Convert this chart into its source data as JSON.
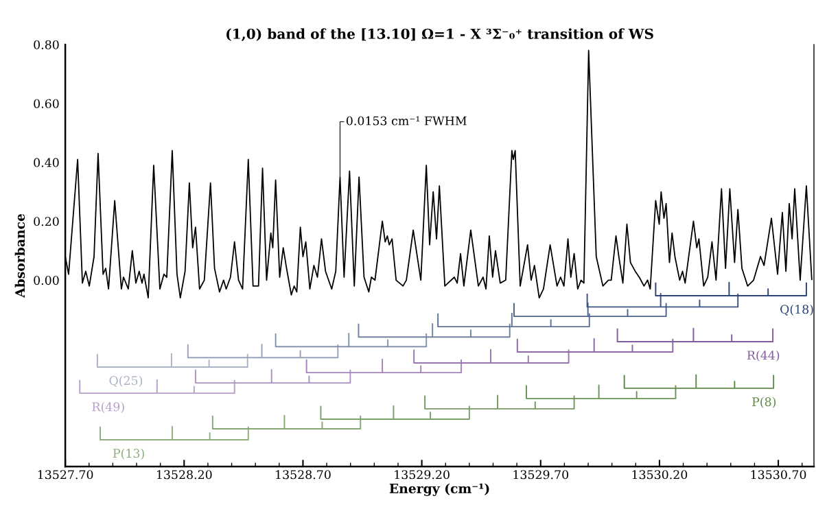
{
  "chart_data": {
    "type": "line",
    "title": "(1,0) band of the [13.10] Ω=1 - X ³Σ⁻₀⁺ transition of WS",
    "xlabel": "Energy (cm⁻¹)",
    "ylabel": "Absorbance",
    "xlim": [
      13527.7,
      13530.85
    ],
    "ylim": [
      -0.633,
      0.8
    ],
    "xticks": [
      {
        "value": 13527.7,
        "label": "13527.70"
      },
      {
        "value": 13527.8,
        "label": null
      },
      {
        "value": 13527.9,
        "label": null
      },
      {
        "value": 13528.0,
        "label": null
      },
      {
        "value": 13528.1,
        "label": null
      },
      {
        "value": 13528.2,
        "label": "13528.20"
      },
      {
        "value": 13528.3,
        "label": null
      },
      {
        "value": 13528.4,
        "label": null
      },
      {
        "value": 13528.5,
        "label": null
      },
      {
        "value": 13528.6,
        "label": null
      },
      {
        "value": 13528.7,
        "label": "13528.70"
      },
      {
        "value": 13528.8,
        "label": null
      },
      {
        "value": 13528.9,
        "label": null
      },
      {
        "value": 13529.0,
        "label": null
      },
      {
        "value": 13529.1,
        "label": null
      },
      {
        "value": 13529.2,
        "label": "13529.20"
      },
      {
        "value": 13529.3,
        "label": null
      },
      {
        "value": 13529.4,
        "label": null
      },
      {
        "value": 13529.5,
        "label": null
      },
      {
        "value": 13529.6,
        "label": null
      },
      {
        "value": 13529.7,
        "label": "13529.70"
      },
      {
        "value": 13529.8,
        "label": null
      },
      {
        "value": 13529.9,
        "label": null
      },
      {
        "value": 13530.0,
        "label": null
      },
      {
        "value": 13530.1,
        "label": null
      },
      {
        "value": 13530.2,
        "label": "13530.20"
      },
      {
        "value": 13530.3,
        "label": null
      },
      {
        "value": 13530.4,
        "label": null
      },
      {
        "value": 13530.5,
        "label": null
      },
      {
        "value": 13530.6,
        "label": null
      },
      {
        "value": 13530.7,
        "label": "13530.70"
      },
      {
        "value": 13530.8,
        "label": null
      }
    ],
    "yticks": [
      {
        "value": 0,
        "label": "0.00"
      },
      {
        "value": 0.2,
        "label": "0.20"
      },
      {
        "value": 0.4,
        "label": "0.40"
      },
      {
        "value": 0.6,
        "label": "0.60"
      },
      {
        "value": 0.8,
        "label": "0.80"
      }
    ],
    "grid": false,
    "legend": false,
    "marker": "none",
    "line_style": "solid",
    "annotations": [
      {
        "text": "0.0153 cm⁻¹ FWHM",
        "x": 13528.856,
        "y": 0.35
      }
    ],
    "series": [
      {
        "color": "#000000",
        "x": [
          13527.7,
          13527.714,
          13527.752,
          13527.772,
          13527.786,
          13527.801,
          13527.821,
          13527.838,
          13527.859,
          13527.87,
          13527.882,
          13527.908,
          13527.936,
          13527.945,
          13527.965,
          13527.982,
          13527.997,
          13528.011,
          13528.023,
          13528.031,
          13528.049,
          13528.072,
          13528.098,
          13528.115,
          13528.127,
          13528.15,
          13528.17,
          13528.184,
          13528.204,
          13528.222,
          13528.236,
          13528.248,
          13528.265,
          13528.285,
          13528.311,
          13528.328,
          13528.349,
          13528.366,
          13528.377,
          13528.395,
          13528.412,
          13528.429,
          13528.446,
          13528.47,
          13528.49,
          13528.513,
          13528.53,
          13528.547,
          13528.565,
          13528.573,
          13528.585,
          13528.602,
          13528.617,
          13528.631,
          13528.651,
          13528.663,
          13528.674,
          13528.689,
          13528.7,
          13528.712,
          13528.729,
          13528.746,
          13528.761,
          13528.778,
          13528.795,
          13528.821,
          13528.838,
          13528.856,
          13528.873,
          13528.896,
          13528.916,
          13528.936,
          13528.957,
          13528.977,
          13528.988,
          13529.003,
          13529.034,
          13529.046,
          13529.055,
          13529.063,
          13529.075,
          13529.092,
          13529.121,
          13529.135,
          13529.164,
          13529.196,
          13529.219,
          13529.233,
          13529.248,
          13529.262,
          13529.274,
          13529.297,
          13529.337,
          13529.349,
          13529.363,
          13529.377,
          13529.406,
          13529.438,
          13529.458,
          13529.47,
          13529.484,
          13529.498,
          13529.51,
          13529.53,
          13529.553,
          13529.579,
          13529.585,
          13529.593,
          13529.614,
          13529.645,
          13529.66,
          13529.674,
          13529.694,
          13529.712,
          13529.74,
          13529.769,
          13529.784,
          13529.798,
          13529.815,
          13529.827,
          13529.841,
          13529.856,
          13529.87,
          13529.882,
          13529.902,
          13529.934,
          13529.962,
          13529.985,
          13529.997,
          13530.017,
          13530.029,
          13530.046,
          13530.063,
          13530.078,
          13530.098,
          13530.115,
          13530.135,
          13530.15,
          13530.161,
          13530.184,
          13530.199,
          13530.207,
          13530.219,
          13530.228,
          13530.242,
          13530.253,
          13530.265,
          13530.285,
          13530.297,
          13530.308,
          13530.343,
          13530.357,
          13530.366,
          13530.386,
          13530.403,
          13530.421,
          13530.438,
          13530.461,
          13530.478,
          13530.496,
          13530.516,
          13530.53,
          13530.547,
          13530.571,
          13530.596,
          13530.625,
          13530.64,
          13530.671,
          13530.697,
          13530.717,
          13530.732,
          13530.746,
          13530.758,
          13530.769,
          13530.792,
          13530.818,
          13530.841
        ],
        "values": [
          0.08,
          0.02,
          0.41,
          -0.01,
          0.03,
          -0.02,
          0.08,
          0.43,
          0.02,
          0.04,
          -0.03,
          0.27,
          -0.03,
          0.01,
          -0.03,
          0.1,
          -0.01,
          0.03,
          -0.01,
          0.02,
          -0.06,
          0.39,
          -0.03,
          0.02,
          0.01,
          0.44,
          0.02,
          -0.06,
          0.03,
          0.33,
          0.11,
          0.18,
          -0.03,
          0.0,
          0.33,
          0.04,
          -0.04,
          0.0,
          -0.03,
          0.01,
          0.13,
          0.0,
          -0.03,
          0.41,
          -0.02,
          -0.02,
          0.38,
          0.0,
          0.16,
          0.11,
          0.34,
          0.01,
          0.11,
          0.04,
          -0.05,
          -0.02,
          -0.04,
          0.18,
          0.08,
          0.13,
          -0.03,
          0.05,
          0.01,
          0.14,
          0.03,
          -0.03,
          0.03,
          0.35,
          0.01,
          0.37,
          -0.02,
          0.35,
          0.01,
          -0.04,
          0.01,
          0.0,
          0.2,
          0.13,
          0.15,
          0.12,
          0.14,
          0.0,
          -0.02,
          0.0,
          0.17,
          0.0,
          0.39,
          0.12,
          0.3,
          0.14,
          0.32,
          -0.02,
          0.01,
          -0.01,
          0.09,
          -0.02,
          0.17,
          -0.02,
          0.01,
          -0.03,
          0.15,
          0.01,
          0.1,
          -0.01,
          0.0,
          0.44,
          0.41,
          0.44,
          -0.02,
          0.12,
          0.0,
          0.05,
          -0.06,
          -0.03,
          0.12,
          -0.02,
          0.01,
          -0.02,
          0.14,
          0.01,
          0.09,
          -0.03,
          0.0,
          -0.01,
          0.78,
          0.08,
          -0.02,
          0.0,
          0.0,
          0.15,
          0.08,
          -0.01,
          0.19,
          0.06,
          0.03,
          0.01,
          -0.02,
          0.0,
          -0.03,
          0.27,
          0.19,
          0.3,
          0.21,
          0.26,
          0.06,
          0.16,
          0.08,
          0.0,
          0.03,
          -0.01,
          0.2,
          0.11,
          0.14,
          -0.02,
          0.01,
          0.13,
          0.0,
          0.31,
          0.04,
          0.31,
          0.06,
          0.24,
          0.04,
          -0.02,
          0.0,
          0.08,
          0.05,
          0.21,
          0.02,
          0.23,
          0.03,
          0.26,
          0.14,
          0.31,
          0.0,
          0.32,
          0.0
        ]
      },
      {
        "name": "Q(25)",
        "color": "#a9b3c3",
        "x": [
          13527.835,
          13527.835,
          13528.147,
          13528.147,
          13528.147,
          13528.305,
          13528.305,
          13528.305,
          13528.467,
          13528.467
        ],
        "values": [
          -0.25,
          -0.295,
          -0.295,
          -0.25,
          -0.295,
          -0.295,
          -0.272,
          -0.295,
          -0.295,
          -0.25
        ]
      },
      {
        "color": "#97a3b8",
        "x": [
          13528.216,
          13528.216,
          13528.527,
          13528.527,
          13528.527,
          13528.689,
          13528.689,
          13528.689,
          13528.847,
          13528.847
        ],
        "values": [
          -0.218,
          -0.263,
          -0.263,
          -0.218,
          -0.263,
          -0.263,
          -0.24,
          -0.263,
          -0.263,
          -0.218
        ]
      },
      {
        "color": "#8493ad",
        "x": [
          13528.585,
          13528.585,
          13528.893,
          13528.893,
          13528.893,
          13529.057,
          13529.057,
          13529.057,
          13529.219,
          13529.219
        ],
        "values": [
          -0.181,
          -0.226,
          -0.226,
          -0.181,
          -0.226,
          -0.226,
          -0.203,
          -0.226,
          -0.226,
          -0.181
        ]
      },
      {
        "color": "#7283a2",
        "x": [
          13528.934,
          13528.934,
          13529.245,
          13529.245,
          13529.245,
          13529.406,
          13529.406,
          13529.406,
          13529.57,
          13529.57
        ],
        "values": [
          -0.148,
          -0.193,
          -0.193,
          -0.148,
          -0.193,
          -0.193,
          -0.17,
          -0.193,
          -0.193,
          -0.148
        ]
      },
      {
        "color": "#5f7396",
        "x": [
          13529.268,
          13529.268,
          13529.579,
          13529.579,
          13529.579,
          13529.743,
          13529.743,
          13529.743,
          13529.905,
          13529.905
        ],
        "values": [
          -0.113,
          -0.158,
          -0.158,
          -0.113,
          -0.158,
          -0.158,
          -0.135,
          -0.158,
          -0.158,
          -0.113
        ]
      },
      {
        "color": "#4d638b",
        "x": [
          13529.588,
          13529.588,
          13529.899,
          13529.899,
          13529.899,
          13530.066,
          13530.066,
          13530.066,
          13530.228,
          13530.228
        ],
        "values": [
          -0.078,
          -0.123,
          -0.123,
          -0.078,
          -0.123,
          -0.123,
          -0.1,
          -0.123,
          -0.123,
          -0.078
        ]
      },
      {
        "color": "#3a5380",
        "x": [
          13529.896,
          13529.896,
          13530.205,
          13530.205,
          13530.205,
          13530.369,
          13530.369,
          13530.369,
          13530.53,
          13530.53
        ],
        "values": [
          -0.046,
          -0.091,
          -0.091,
          -0.046,
          -0.091,
          -0.091,
          -0.068,
          -0.091,
          -0.091,
          -0.046
        ]
      },
      {
        "name": "Q(18)",
        "color": "#2b4474",
        "x": [
          13530.184,
          13530.184,
          13530.493,
          13530.493,
          13530.493,
          13530.657,
          13530.657,
          13530.657,
          13530.818,
          13530.818
        ],
        "values": [
          -0.008,
          -0.053,
          -0.053,
          -0.008,
          -0.053,
          -0.053,
          -0.03,
          -0.053,
          -0.053,
          -0.008
        ]
      },
      {
        "name": "R(49)",
        "color": "#b89fca",
        "x": [
          13527.761,
          13527.761,
          13528.086,
          13528.086,
          13528.086,
          13528.242,
          13528.242,
          13528.242,
          13528.412,
          13528.412
        ],
        "values": [
          -0.339,
          -0.384,
          -0.384,
          -0.339,
          -0.384,
          -0.384,
          -0.361,
          -0.384,
          -0.384,
          -0.339
        ]
      },
      {
        "color": "#ad91c2",
        "x": [
          13528.248,
          13528.248,
          13528.568,
          13528.568,
          13528.568,
          13528.726,
          13528.726,
          13528.726,
          13528.899,
          13528.899
        ],
        "values": [
          -0.304,
          -0.349,
          -0.349,
          -0.304,
          -0.349,
          -0.349,
          -0.326,
          -0.349,
          -0.349,
          -0.304
        ]
      },
      {
        "color": "#a384b9",
        "x": [
          13528.715,
          13528.715,
          13529.034,
          13529.034,
          13529.034,
          13529.196,
          13529.196,
          13529.196,
          13529.366,
          13529.366
        ],
        "values": [
          -0.269,
          -0.314,
          -0.314,
          -0.269,
          -0.314,
          -0.314,
          -0.291,
          -0.314,
          -0.314,
          -0.269
        ]
      },
      {
        "color": "#9877b0",
        "x": [
          13529.167,
          13529.167,
          13529.49,
          13529.49,
          13529.49,
          13529.648,
          13529.648,
          13529.648,
          13529.818,
          13529.818
        ],
        "values": [
          -0.236,
          -0.281,
          -0.281,
          -0.236,
          -0.281,
          -0.281,
          -0.258,
          -0.281,
          -0.281,
          -0.236
        ]
      },
      {
        "color": "#8d69a7",
        "x": [
          13529.602,
          13529.602,
          13529.925,
          13529.925,
          13529.925,
          13530.086,
          13530.086,
          13530.086,
          13530.256,
          13530.256
        ],
        "values": [
          -0.199,
          -0.244,
          -0.244,
          -0.199,
          -0.244,
          -0.244,
          -0.221,
          -0.244,
          -0.244,
          -0.199
        ]
      },
      {
        "name": "R(44)",
        "color": "#825c9e",
        "x": [
          13530.023,
          13530.023,
          13530.343,
          13530.343,
          13530.343,
          13530.504,
          13530.504,
          13530.504,
          13530.677,
          13530.677
        ],
        "values": [
          -0.164,
          -0.209,
          -0.209,
          -0.164,
          -0.209,
          -0.209,
          -0.186,
          -0.209,
          -0.209,
          -0.164
        ]
      },
      {
        "name": "P(13)",
        "color": "#8fae7c",
        "x": [
          13527.847,
          13527.847,
          13528.15,
          13528.15,
          13528.15,
          13528.308,
          13528.308,
          13528.308,
          13528.47,
          13528.47
        ],
        "values": [
          -0.497,
          -0.542,
          -0.542,
          -0.497,
          -0.542,
          -0.542,
          -0.519,
          -0.542,
          -0.542,
          -0.497
        ]
      },
      {
        "color": "#88a873",
        "x": [
          13528.32,
          13528.32,
          13528.622,
          13528.622,
          13528.622,
          13528.781,
          13528.781,
          13528.781,
          13528.942,
          13528.942
        ],
        "values": [
          -0.46,
          -0.505,
          -0.505,
          -0.46,
          -0.505,
          -0.505,
          -0.482,
          -0.505,
          -0.505,
          -0.46
        ]
      },
      {
        "color": "#7ea16a",
        "x": [
          13528.775,
          13528.775,
          13529.081,
          13529.081,
          13529.081,
          13529.236,
          13529.236,
          13529.236,
          13529.4,
          13529.4
        ],
        "values": [
          -0.427,
          -0.472,
          -0.472,
          -0.427,
          -0.472,
          -0.472,
          -0.449,
          -0.472,
          -0.472,
          -0.427
        ]
      },
      {
        "color": "#759a60",
        "x": [
          13529.213,
          13529.213,
          13529.519,
          13529.519,
          13529.519,
          13529.677,
          13529.677,
          13529.677,
          13529.841,
          13529.841
        ],
        "values": [
          -0.392,
          -0.437,
          -0.437,
          -0.392,
          -0.437,
          -0.437,
          -0.414,
          -0.437,
          -0.437,
          -0.392
        ]
      },
      {
        "color": "#6b9356",
        "x": [
          13529.64,
          13529.64,
          13529.945,
          13529.945,
          13529.945,
          13530.104,
          13530.104,
          13530.104,
          13530.268,
          13530.268
        ],
        "values": [
          -0.357,
          -0.402,
          -0.402,
          -0.357,
          -0.402,
          -0.402,
          -0.379,
          -0.402,
          -0.402,
          -0.357
        ]
      },
      {
        "name": "P(8)",
        "color": "#5f8a47",
        "x": [
          13530.052,
          13530.052,
          13530.354,
          13530.354,
          13530.354,
          13530.516,
          13530.516,
          13530.516,
          13530.68,
          13530.68
        ],
        "values": [
          -0.322,
          -0.367,
          -0.367,
          -0.322,
          -0.367,
          -0.367,
          -0.344,
          -0.367,
          -0.367,
          -0.322
        ]
      }
    ]
  }
}
